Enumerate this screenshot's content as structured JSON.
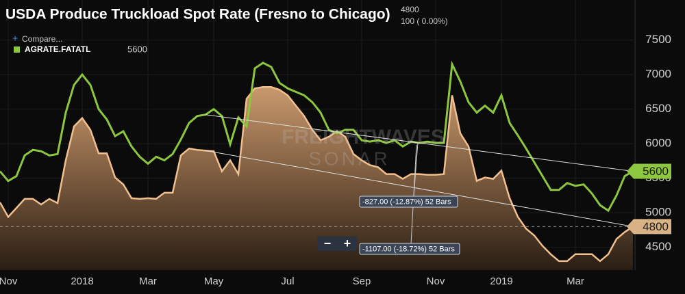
{
  "chart_data": {
    "type": "line",
    "title": "USDA Produce Truckload Spot Rate (Fresno to Chicago)",
    "header_change": "100 ( 0.00%)",
    "compare_label": "Compare...",
    "watermark": [
      "FREIGHTWAVES",
      "SONAR"
    ],
    "annotations": [
      "-827.00 (-12.87%) 52 Bars",
      "-1107.00 (-18.72%) 52 Bars"
    ],
    "categories": [
      null,
      "Nov",
      null,
      null,
      null,
      null,
      null,
      null,
      null,
      null,
      "2018",
      null,
      null,
      null,
      null,
      null,
      null,
      null,
      "Mar",
      null,
      null,
      null,
      null,
      null,
      null,
      null,
      "May",
      null,
      null,
      null,
      null,
      null,
      null,
      null,
      null,
      "Jul",
      null,
      null,
      null,
      null,
      null,
      null,
      null,
      null,
      "Sep",
      null,
      null,
      null,
      null,
      null,
      null,
      null,
      null,
      "Nov",
      null,
      null,
      null,
      null,
      null,
      null,
      null,
      "2019",
      null,
      null,
      null,
      null,
      null,
      null,
      null,
      null,
      "Mar",
      null,
      null,
      null,
      null,
      null,
      null,
      null
    ],
    "series": [
      {
        "name": "AGRATE.FATATL",
        "type": "line",
        "color": "#8dc63f",
        "values": [
          5600,
          5460,
          5530,
          5830,
          5910,
          5890,
          5830,
          5850,
          6450,
          6850,
          7000,
          6850,
          6500,
          6350,
          6110,
          6180,
          5960,
          5810,
          5710,
          5810,
          5760,
          5850,
          6060,
          6300,
          6400,
          6420,
          6500,
          6400,
          5990,
          6380,
          6250,
          7090,
          7170,
          7110,
          6880,
          6800,
          6750,
          6700,
          6600,
          6450,
          6200,
          6150,
          6200,
          6200,
          6050,
          6030,
          6050,
          6010,
          6050,
          5960,
          6030,
          6010,
          6030,
          6010,
          6010,
          7150,
          6900,
          6600,
          6450,
          6550,
          6450,
          6700,
          6300,
          6120,
          5930,
          5730,
          5530,
          5330,
          5330,
          5430,
          5390,
          5410,
          5280,
          5110,
          5030,
          5250,
          5530,
          5600
        ]
      },
      {
        "type": "area",
        "color": "#f2c08e",
        "values": [
          5150,
          4940,
          5070,
          5200,
          5200,
          5120,
          5200,
          5140,
          5760,
          6250,
          6370,
          6200,
          5860,
          5860,
          5510,
          5410,
          5210,
          5200,
          5210,
          5200,
          5290,
          5290,
          5830,
          5930,
          5910,
          5900,
          5890,
          5600,
          5760,
          5560,
          6650,
          6800,
          6820,
          6820,
          6780,
          6700,
          6550,
          6400,
          6200,
          6050,
          6100,
          6180,
          6100,
          5850,
          5760,
          5690,
          5660,
          5560,
          5560,
          5490,
          5560,
          5560,
          5550,
          5550,
          5560,
          6700,
          6150,
          5960,
          5460,
          5510,
          5490,
          5610,
          5210,
          4940,
          4770,
          4670,
          4520,
          4400,
          4300,
          4300,
          4400,
          4400,
          4400,
          4300,
          4400,
          4620,
          4720,
          4800
        ]
      }
    ],
    "ylim": [
      4170,
      8080
    ],
    "yticks": [
      4500,
      5000,
      5500,
      6000,
      6500,
      7000,
      7500
    ],
    "grid": true
  }
}
